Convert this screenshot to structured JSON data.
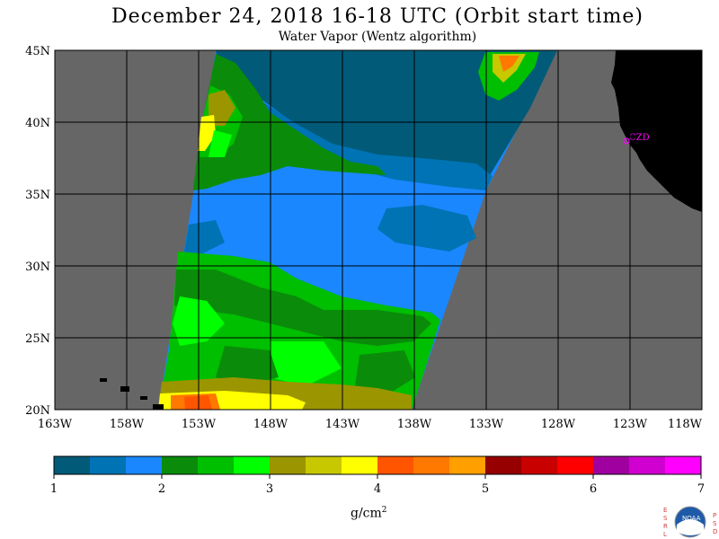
{
  "title": "December 24, 2018  16-18 UTC  (Orbit start time)",
  "subtitle": "Water Vapor (Wentz algorithm)",
  "map": {
    "lon_labels": [
      "163W",
      "158W",
      "153W",
      "148W",
      "143W",
      "138W",
      "133W",
      "128W",
      "123W",
      "118W"
    ],
    "lat_labels": [
      "45N",
      "40N",
      "35N",
      "30N",
      "25N",
      "20N"
    ],
    "station_label": "CZD",
    "colors": {
      "no_data": "#666666",
      "land": "#000000",
      "station": "#ff00ff"
    }
  },
  "colorbar": {
    "ticks": [
      "1",
      "2",
      "3",
      "4",
      "5",
      "6",
      "7"
    ],
    "colors": [
      "#005a78",
      "#0073b4",
      "#1a87ff",
      "#0a8c0a",
      "#00be00",
      "#00ff00",
      "#9b9600",
      "#c8c800",
      "#ffff00",
      "#ff5500",
      "#ff7800",
      "#ffa000",
      "#960000",
      "#c80000",
      "#ff0000",
      "#a000a0",
      "#d000d0",
      "#ff00ff"
    ],
    "units_text": "g/cm",
    "units_power": "2"
  },
  "logo": {
    "name": "noaa-esrl-psd-logo",
    "left_letters": "ESRL",
    "right_letters": "PSD"
  }
}
